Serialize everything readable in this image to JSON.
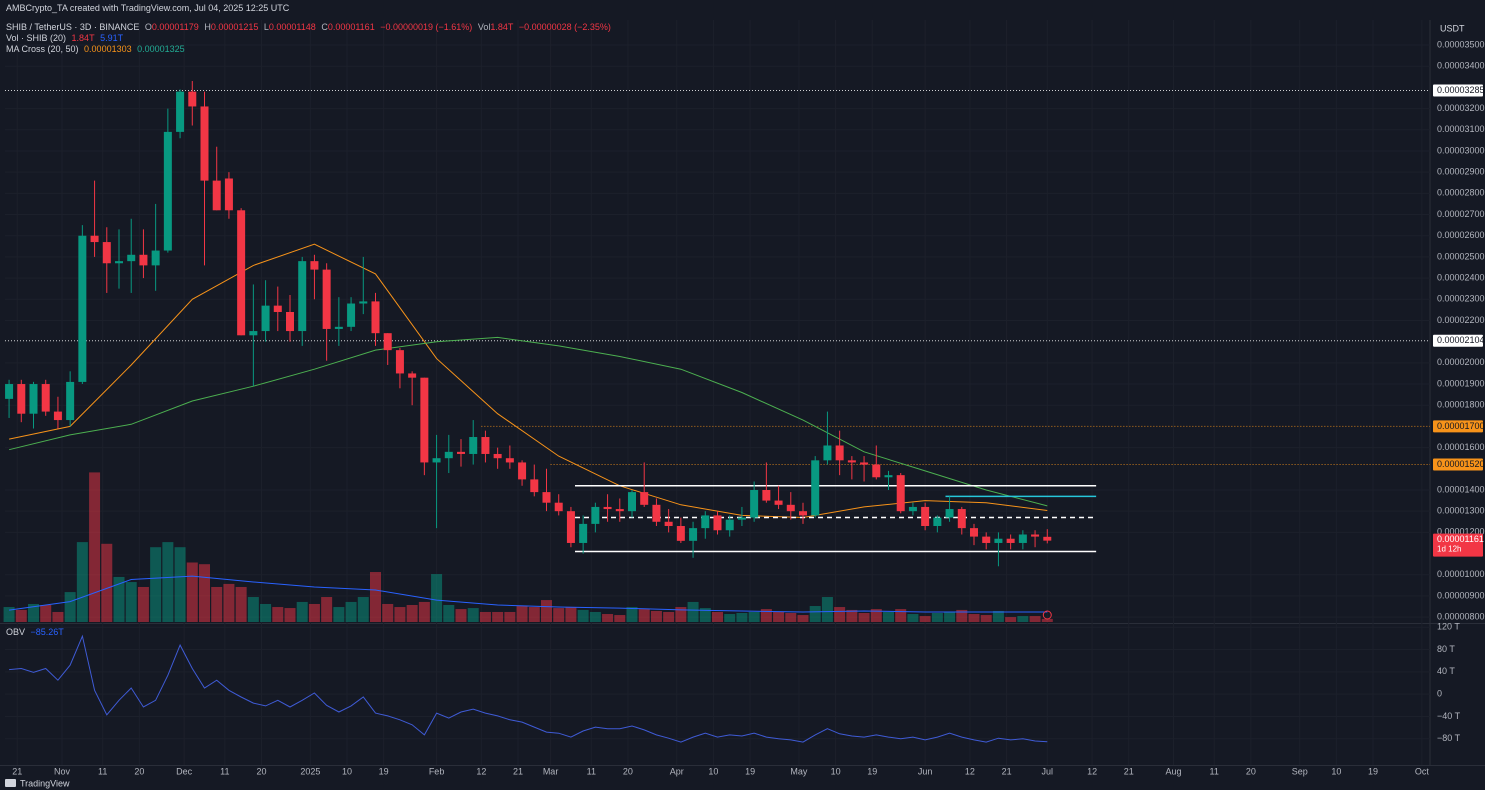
{
  "header": {
    "credit": "AMBCrypto_TA created with TradingView.com, Jul 04, 2025 12:25 UTC",
    "symbol": "SHIB / TetherUS · 3D · BINANCE",
    "ohlc_keys": [
      "O",
      "H",
      "L",
      "C"
    ],
    "change": "−0.00000019 (−1.61%)",
    "vol_key": "Vol",
    "vol": "1.84T",
    "vol_change": "−0.00000028 (−2.35%)",
    "volume_indicator": "Vol · SHIB (20)",
    "ma_indicator": "MA Cross (20, 50)",
    "currency": "USDT",
    "countdown": "1d 12h",
    "brand": "TradingView"
  },
  "chart_data": {
    "type": "candlestick",
    "up_color": "#089981",
    "down_color": "#f23645",
    "grid": true,
    "xlim": [
      "2024-10-18",
      "2025-10-03"
    ],
    "xticks": [
      {
        "value": "2024-10-21",
        "label": "21"
      },
      {
        "value": "2024-11-01",
        "label": "Nov"
      },
      {
        "value": "2024-11-11",
        "label": "11"
      },
      {
        "value": "2024-11-20",
        "label": "20"
      },
      {
        "value": "2024-12-01",
        "label": "Dec"
      },
      {
        "value": "2024-12-11",
        "label": "11"
      },
      {
        "value": "2024-12-20",
        "label": "20"
      },
      {
        "value": "2025-01-01",
        "label": "2025"
      },
      {
        "value": "2025-01-10",
        "label": "10"
      },
      {
        "value": "2025-01-19",
        "label": "19"
      },
      {
        "value": "2025-02-01",
        "label": "Feb"
      },
      {
        "value": "2025-02-12",
        "label": "12"
      },
      {
        "value": "2025-02-21",
        "label": "21"
      },
      {
        "value": "2025-03-01",
        "label": "Mar"
      },
      {
        "value": "2025-03-11",
        "label": "11"
      },
      {
        "value": "2025-03-20",
        "label": "20"
      },
      {
        "value": "2025-04-01",
        "label": "Apr"
      },
      {
        "value": "2025-04-10",
        "label": "10"
      },
      {
        "value": "2025-04-19",
        "label": "19"
      },
      {
        "value": "2025-05-01",
        "label": "May"
      },
      {
        "value": "2025-05-10",
        "label": "10"
      },
      {
        "value": "2025-05-19",
        "label": "19"
      },
      {
        "value": "2025-06-01",
        "label": "Jun"
      },
      {
        "value": "2025-06-12",
        "label": "12"
      },
      {
        "value": "2025-06-21",
        "label": "21"
      },
      {
        "value": "2025-07-01",
        "label": "Jul"
      },
      {
        "value": "2025-07-12",
        "label": "12"
      },
      {
        "value": "2025-07-21",
        "label": "21"
      },
      {
        "value": "2025-08-01",
        "label": "Aug"
      },
      {
        "value": "2025-08-11",
        "label": "11"
      },
      {
        "value": "2025-08-20",
        "label": "20"
      },
      {
        "value": "2025-09-01",
        "label": "Sep"
      },
      {
        "value": "2025-09-10",
        "label": "10"
      },
      {
        "value": "2025-09-19",
        "label": "19"
      },
      {
        "value": "2025-10-01",
        "label": "Oct"
      }
    ],
    "ylim": [
      7.77e-06,
      3.618e-05
    ],
    "yticks": [
      {
        "value": 3.5e-05,
        "label": "0.00003500"
      },
      {
        "value": 3.4e-05,
        "label": "0.00003400"
      },
      {
        "value": 3.2e-05,
        "label": "0.00003200"
      },
      {
        "value": 3.1e-05,
        "label": "0.00003100"
      },
      {
        "value": 3e-05,
        "label": "0.00003000"
      },
      {
        "value": 2.9e-05,
        "label": "0.00002900"
      },
      {
        "value": 2.8e-05,
        "label": "0.00002800"
      },
      {
        "value": 2.7e-05,
        "label": "0.00002700"
      },
      {
        "value": 2.6e-05,
        "label": "0.00002600"
      },
      {
        "value": 2.5e-05,
        "label": "0.00002500"
      },
      {
        "value": 2.4e-05,
        "label": "0.00002400"
      },
      {
        "value": 2.3e-05,
        "label": "0.00002300"
      },
      {
        "value": 2.2e-05,
        "label": "0.00002200"
      },
      {
        "value": 2e-05,
        "label": "0.00002000"
      },
      {
        "value": 1.9e-05,
        "label": "0.00001900"
      },
      {
        "value": 1.8e-05,
        "label": "0.00001800"
      },
      {
        "value": 1.6e-05,
        "label": "0.00001600"
      },
      {
        "value": 1.4e-05,
        "label": "0.00001400"
      },
      {
        "value": 1.3e-05,
        "label": "0.00001300"
      },
      {
        "value": 1.2e-05,
        "label": "0.00001200"
      },
      {
        "value": 1e-05,
        "label": "0.00001000"
      },
      {
        "value": 9e-06,
        "label": "0.00000900"
      },
      {
        "value": 8e-06,
        "label": "0.00000800"
      }
    ],
    "x": [
      "2024-10-19",
      "2024-10-22",
      "2024-10-25",
      "2024-10-28",
      "2024-10-31",
      "2024-11-03",
      "2024-11-06",
      "2024-11-09",
      "2024-11-12",
      "2024-11-15",
      "2024-11-18",
      "2024-11-21",
      "2024-11-24",
      "2024-11-27",
      "2024-11-30",
      "2024-12-03",
      "2024-12-06",
      "2024-12-09",
      "2024-12-12",
      "2024-12-15",
      "2024-12-18",
      "2024-12-21",
      "2024-12-24",
      "2024-12-27",
      "2024-12-30",
      "2025-01-02",
      "2025-01-05",
      "2025-01-08",
      "2025-01-11",
      "2025-01-14",
      "2025-01-17",
      "2025-01-20",
      "2025-01-23",
      "2025-01-26",
      "2025-01-29",
      "2025-02-01",
      "2025-02-04",
      "2025-02-07",
      "2025-02-10",
      "2025-02-13",
      "2025-02-16",
      "2025-02-19",
      "2025-02-22",
      "2025-02-25",
      "2025-02-28",
      "2025-03-03",
      "2025-03-06",
      "2025-03-09",
      "2025-03-12",
      "2025-03-15",
      "2025-03-18",
      "2025-03-21",
      "2025-03-24",
      "2025-03-27",
      "2025-03-30",
      "2025-04-02",
      "2025-04-05",
      "2025-04-08",
      "2025-04-11",
      "2025-04-14",
      "2025-04-17",
      "2025-04-20",
      "2025-04-23",
      "2025-04-26",
      "2025-04-29",
      "2025-05-02",
      "2025-05-05",
      "2025-05-08",
      "2025-05-11",
      "2025-05-14",
      "2025-05-17",
      "2025-05-20",
      "2025-05-23",
      "2025-05-26",
      "2025-05-29",
      "2025-06-01",
      "2025-06-04",
      "2025-06-07",
      "2025-06-10",
      "2025-06-13",
      "2025-06-16",
      "2025-06-19",
      "2025-06-22",
      "2025-06-25",
      "2025-06-28",
      "2025-07-01"
    ],
    "open": [
      1.83e-05,
      1.9e-05,
      1.76e-05,
      1.9e-05,
      1.77e-05,
      1.73e-05,
      1.91e-05,
      2.6e-05,
      2.57e-05,
      2.47e-05,
      2.48e-05,
      2.51e-05,
      2.46e-05,
      2.53e-05,
      3.09e-05,
      3.28e-05,
      3.21e-05,
      2.86e-05,
      2.87e-05,
      2.72e-05,
      2.13e-05,
      2.15e-05,
      2.27e-05,
      2.24e-05,
      2.15e-05,
      2.48e-05,
      2.44e-05,
      2.16e-05,
      2.17e-05,
      2.28e-05,
      2.29e-05,
      2.14e-05,
      2.06e-05,
      1.95e-05,
      1.93e-05,
      1.53e-05,
      1.55e-05,
      1.58e-05,
      1.57e-05,
      1.65e-05,
      1.57e-05,
      1.55e-05,
      1.53e-05,
      1.45e-05,
      1.39e-05,
      1.34e-05,
      1.3e-05,
      1.15e-05,
      1.24e-05,
      1.32e-05,
      1.31e-05,
      1.3e-05,
      1.39e-05,
      1.33e-05,
      1.25e-05,
      1.23e-05,
      1.16e-05,
      1.22e-05,
      1.28e-05,
      1.21e-05,
      1.26e-05,
      1.27e-05,
      1.4e-05,
      1.35e-05,
      1.33e-05,
      1.3e-05,
      1.28e-05,
      1.54e-05,
      1.61e-05,
      1.54e-05,
      1.53e-05,
      1.52e-05,
      1.46e-05,
      1.47e-05,
      1.3e-05,
      1.32e-05,
      1.23e-05,
      1.27e-05,
      1.31e-05,
      1.22e-05,
      1.18e-05,
      1.15e-05,
      1.17e-05,
      1.15e-05,
      1.19e-05,
      1.179e-05
    ],
    "high": [
      1.92e-05,
      1.92e-05,
      1.91e-05,
      1.92e-05,
      1.84e-05,
      1.96e-05,
      2.65e-05,
      2.86e-05,
      2.64e-05,
      2.63e-05,
      2.68e-05,
      2.63e-05,
      2.75e-05,
      3.2e-05,
      3.29e-05,
      3.33e-05,
      3.28e-05,
      3.02e-05,
      2.9e-05,
      2.73e-05,
      2.37e-05,
      2.39e-05,
      2.36e-05,
      2.32e-05,
      2.5e-05,
      2.51e-05,
      2.47e-05,
      2.31e-05,
      2.31e-05,
      2.5e-05,
      2.33e-05,
      2.14e-05,
      2.07e-05,
      1.96e-05,
      1.93e-05,
      1.66e-05,
      1.66e-05,
      1.64e-05,
      1.73e-05,
      1.68e-05,
      1.6e-05,
      1.61e-05,
      1.54e-05,
      1.52e-05,
      1.5e-05,
      1.38e-05,
      1.32e-05,
      1.28e-05,
      1.34e-05,
      1.38e-05,
      1.36e-05,
      1.4e-05,
      1.53e-05,
      1.36e-05,
      1.31e-05,
      1.27e-05,
      1.25e-05,
      1.3e-05,
      1.3e-05,
      1.28e-05,
      1.32e-05,
      1.44e-05,
      1.53e-05,
      1.42e-05,
      1.39e-05,
      1.34e-05,
      1.56e-05,
      1.77e-05,
      1.68e-05,
      1.56e-05,
      1.56e-05,
      1.61e-05,
      1.49e-05,
      1.48e-05,
      1.34e-05,
      1.34e-05,
      1.28e-05,
      1.37e-05,
      1.32e-05,
      1.24e-05,
      1.2e-05,
      1.2e-05,
      1.19e-05,
      1.21e-05,
      1.21e-05,
      1.215e-05
    ],
    "low": [
      1.74e-05,
      1.72e-05,
      1.69e-05,
      1.75e-05,
      1.69e-05,
      1.7e-05,
      1.9e-05,
      2.5e-05,
      2.33e-05,
      2.35e-05,
      2.33e-05,
      2.4e-05,
      2.34e-05,
      2.52e-05,
      3.06e-05,
      3.12e-05,
      2.46e-05,
      2.72e-05,
      2.68e-05,
      2.13e-05,
      1.89e-05,
      2.1e-05,
      2.15e-05,
      2.1e-05,
      2.08e-05,
      2.3e-05,
      2.01e-05,
      2.08e-05,
      2.15e-05,
      2.23e-05,
      2.08e-05,
      1.99e-05,
      1.88e-05,
      1.8e-05,
      1.47e-05,
      1.22e-05,
      1.48e-05,
      1.51e-05,
      1.52e-05,
      1.53e-05,
      1.5e-05,
      1.5e-05,
      1.42e-05,
      1.37e-05,
      1.3e-05,
      1.28e-05,
      1.13e-05,
      1.1e-05,
      1.2e-05,
      1.25e-05,
      1.25e-05,
      1.27e-05,
      1.32e-05,
      1.23e-05,
      1.2e-05,
      1.15e-05,
      1.08e-05,
      1.17e-05,
      1.19e-05,
      1.18e-05,
      1.23e-05,
      1.25e-05,
      1.34e-05,
      1.31e-05,
      1.26e-05,
      1.24e-05,
      1.27e-05,
      1.52e-05,
      1.47e-05,
      1.45e-05,
      1.44e-05,
      1.45e-05,
      1.4e-05,
      1.29e-05,
      1.28e-05,
      1.21e-05,
      1.2e-05,
      1.25e-05,
      1.19e-05,
      1.14e-05,
      1.12e-05,
      1.04e-05,
      1.12e-05,
      1.12e-05,
      1.13e-05,
      1.148e-05
    ],
    "close": [
      1.9e-05,
      1.76e-05,
      1.9e-05,
      1.77e-05,
      1.73e-05,
      1.91e-05,
      2.6e-05,
      2.57e-05,
      2.47e-05,
      2.48e-05,
      2.51e-05,
      2.46e-05,
      2.53e-05,
      3.09e-05,
      3.28e-05,
      3.21e-05,
      2.86e-05,
      2.72e-05,
      2.72e-05,
      2.13e-05,
      2.15e-05,
      2.27e-05,
      2.24e-05,
      2.15e-05,
      2.48e-05,
      2.44e-05,
      2.16e-05,
      2.17e-05,
      2.28e-05,
      2.29e-05,
      2.14e-05,
      2.06e-05,
      1.95e-05,
      1.93e-05,
      1.53e-05,
      1.55e-05,
      1.58e-05,
      1.57e-05,
      1.65e-05,
      1.57e-05,
      1.55e-05,
      1.53e-05,
      1.45e-05,
      1.39e-05,
      1.34e-05,
      1.3e-05,
      1.15e-05,
      1.24e-05,
      1.32e-05,
      1.31e-05,
      1.3e-05,
      1.39e-05,
      1.33e-05,
      1.25e-05,
      1.23e-05,
      1.16e-05,
      1.22e-05,
      1.28e-05,
      1.21e-05,
      1.26e-05,
      1.27e-05,
      1.4e-05,
      1.35e-05,
      1.33e-05,
      1.3e-05,
      1.28e-05,
      1.54e-05,
      1.61e-05,
      1.54e-05,
      1.53e-05,
      1.52e-05,
      1.46e-05,
      1.47e-05,
      1.3e-05,
      1.32e-05,
      1.23e-05,
      1.27e-05,
      1.31e-05,
      1.22e-05,
      1.18e-05,
      1.15e-05,
      1.17e-05,
      1.15e-05,
      1.19e-05,
      1.18e-05,
      1.161e-05
    ],
    "series": [
      {
        "color": "#f7931a",
        "x": [
          "2024-10-19",
          "2024-11-03",
          "2024-11-18",
          "2024-12-03",
          "2024-12-18",
          "2025-01-02",
          "2025-01-17",
          "2025-02-01",
          "2025-02-16",
          "2025-03-03",
          "2025-03-18",
          "2025-04-02",
          "2025-04-17",
          "2025-05-02",
          "2025-05-17",
          "2025-06-01",
          "2025-06-16",
          "2025-07-01"
        ],
        "values": [
          1.64e-05,
          1.7e-05,
          1.99e-05,
          2.3e-05,
          2.46e-05,
          2.56e-05,
          2.42e-05,
          2.02e-05,
          1.76e-05,
          1.56e-05,
          1.42e-05,
          1.33e-05,
          1.28e-05,
          1.27e-05,
          1.32e-05,
          1.35e-05,
          1.34e-05,
          1.303e-05
        ]
      },
      {
        "color": "#4caf50",
        "x": [
          "2024-10-19",
          "2024-11-03",
          "2024-11-18",
          "2024-12-03",
          "2024-12-18",
          "2025-01-02",
          "2025-01-17",
          "2025-02-01",
          "2025-02-16",
          "2025-03-03",
          "2025-03-18",
          "2025-04-02",
          "2025-04-17",
          "2025-05-02",
          "2025-05-17",
          "2025-06-01",
          "2025-06-16",
          "2025-07-01"
        ],
        "values": [
          1.59e-05,
          1.66e-05,
          1.71e-05,
          1.82e-05,
          1.89e-05,
          1.97e-05,
          2.06e-05,
          2.1e-05,
          2.12e-05,
          2.08e-05,
          2.03e-05,
          1.97e-05,
          1.86e-05,
          1.73e-05,
          1.58e-05,
          1.49e-05,
          1.4e-05,
          1.325e-05
        ]
      }
    ],
    "volume": {
      "legend": [
        "1.84T",
        "5.91T"
      ],
      "values": [
        8.8,
        7.1,
        10.6,
        10,
        5.9,
        17.6,
        47,
        88,
        46,
        26.5,
        23.5,
        20.6,
        44,
        47,
        44,
        35,
        34,
        20.6,
        22.4,
        20.6,
        14.7,
        10.6,
        8.8,
        8.2,
        11.8,
        10.6,
        14.7,
        8.8,
        11.8,
        14.7,
        29.4,
        10.6,
        8.8,
        10,
        11.8,
        28.2,
        10,
        7.6,
        8.2,
        5.9,
        5.9,
        5.9,
        9.4,
        8.8,
        12.9,
        8.2,
        8.8,
        7.1,
        5.9,
        4.7,
        4.1,
        8.8,
        7.6,
        6.5,
        5.9,
        8.8,
        11.8,
        8.2,
        5.9,
        4.7,
        5.3,
        5.9,
        7.6,
        5.9,
        5.3,
        4.1,
        9.4,
        14.7,
        8.8,
        7.1,
        5.3,
        7.6,
        5.9,
        7.6,
        4.7,
        3.5,
        5.3,
        5.9,
        7.1,
        4.7,
        4.1,
        6.5,
        2.9,
        3.5,
        3.5,
        1.84
      ],
      "ma": {
        "color": "#2962ff",
        "x": [
          "2024-10-19",
          "2024-11-03",
          "2024-11-18",
          "2024-12-03",
          "2024-12-18",
          "2025-01-02",
          "2025-01-17",
          "2025-02-01",
          "2025-02-16",
          "2025-03-03",
          "2025-03-18",
          "2025-04-02",
          "2025-04-17",
          "2025-05-02",
          "2025-05-17",
          "2025-06-01",
          "2025-06-16",
          "2025-07-01"
        ],
        "values": [
          7,
          12,
          25,
          27,
          23.5,
          20.6,
          18.8,
          12.9,
          10,
          8.8,
          8.2,
          7.1,
          6.5,
          5.9,
          6.5,
          5.9,
          5.9,
          5.91
        ]
      }
    },
    "levels": [
      {
        "value": 3.285e-05,
        "label": "0.00003285",
        "color": "#ffffff"
      },
      {
        "value": 2.104e-05,
        "label": "0.00002104",
        "color": "#ffffff"
      },
      {
        "value": 1.7e-05,
        "label": "0.00001700",
        "color": "#f7931a",
        "start": "2025-02-12"
      },
      {
        "value": 1.52e-05,
        "label": "0.00001520",
        "color": "#f7931a",
        "start": "2025-03-01"
      }
    ],
    "drawings": [
      {
        "value": 1.42e-05,
        "start": "2025-03-07",
        "end": "2025-07-13",
        "color": "#ffffff",
        "style": "solid"
      },
      {
        "value": 1.27e-05,
        "start": "2025-03-07",
        "end": "2025-07-13",
        "color": "#ffffff",
        "style": "dashed"
      },
      {
        "value": 1.11e-05,
        "start": "2025-03-07",
        "end": "2025-07-13",
        "color": "#ffffff",
        "style": "solid"
      },
      {
        "value": 1.37e-05,
        "start": "2025-06-06",
        "end": "2025-07-13",
        "color": "#26c6da",
        "style": "solid"
      }
    ],
    "obv": {
      "label": "OBV",
      "value_label": "−85.26T",
      "color": "#3f5bd6",
      "ylim": [
        -127,
        124
      ],
      "yticks": [
        {
          "value": 120,
          "label": "120 T"
        },
        {
          "value": 80,
          "label": "80 T"
        },
        {
          "value": 40,
          "label": "40 T"
        },
        0,
        {
          "value": -40,
          "label": "−40 T"
        },
        {
          "value": -80,
          "label": "−80 T"
        }
      ],
      "values": [
        44,
        46,
        39,
        46,
        25,
        52,
        104,
        7,
        -37,
        -11,
        11,
        -23,
        -11,
        34,
        88,
        46,
        11,
        25,
        7,
        -5,
        -16,
        -21,
        -11,
        -23,
        -11,
        2,
        -20,
        -32,
        -21,
        -5,
        -34,
        -39,
        -46,
        -55,
        -73,
        -34,
        -43,
        -32,
        -27,
        -34,
        -39,
        -46,
        -50,
        -59,
        -68,
        -70,
        -77,
        -66,
        -59,
        -62,
        -62,
        -57,
        -64,
        -73,
        -79,
        -86,
        -77,
        -70,
        -77,
        -73,
        -75,
        -70,
        -77,
        -80,
        -82,
        -86,
        -73,
        -62,
        -71,
        -75,
        -77,
        -73,
        -77,
        -80,
        -77,
        -82,
        -77,
        -70,
        -77,
        -82,
        -86,
        -79,
        -82,
        -80,
        -84,
        -85.26
      ]
    }
  }
}
